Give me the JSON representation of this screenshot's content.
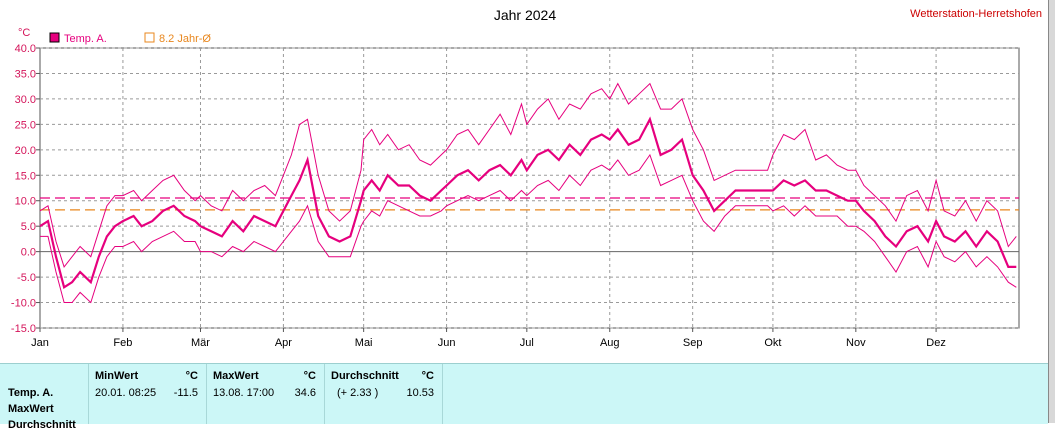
{
  "title": "Jahr 2024",
  "station": "Wetterstation-Herretshofen",
  "unit_label": "°C",
  "legend": [
    {
      "label": "Temp. A.",
      "color": "#e6007e",
      "style": "filled"
    },
    {
      "label": "8.2 Jahr-Ø",
      "color": "#e8871e",
      "style": "outline"
    }
  ],
  "chart_data": {
    "type": "line",
    "title": "Jahr 2024",
    "xlabel": "",
    "ylabel": "°C",
    "ylim": [
      -15,
      40
    ],
    "yticks": [
      "40.0",
      "35.0",
      "30.0",
      "25.0",
      "20.0",
      "15.0",
      "10.0",
      "5.0",
      "0.0",
      "-5.0",
      "-10.0",
      "-15.0"
    ],
    "x_tick_labels": [
      "Jan",
      "Feb",
      "Mär",
      "Apr",
      "Mai",
      "Jun",
      "Jul",
      "Aug",
      "Sep",
      "Okt",
      "Nov",
      "Dez"
    ],
    "x_tick_day": [
      0,
      31,
      60,
      91,
      121,
      152,
      182,
      213,
      244,
      274,
      305,
      335
    ],
    "days_in_year": 366,
    "grid": true,
    "reference_lines": [
      {
        "name": "8.2 Jahr-Ø",
        "value": 8.2,
        "color": "#e8871e"
      },
      {
        "name": "Temp. A. Durchschnitt",
        "value": 10.53,
        "color": "#e6007e"
      }
    ],
    "series": [
      {
        "name": "Temp. A.",
        "color": "#e6007e",
        "day": [
          0,
          3,
          6,
          9,
          12,
          15,
          19,
          22,
          25,
          28,
          31,
          35,
          38,
          42,
          46,
          50,
          54,
          58,
          60,
          64,
          68,
          72,
          76,
          80,
          84,
          88,
          91,
          94,
          97,
          100,
          104,
          108,
          112,
          116,
          120,
          121,
          124,
          127,
          130,
          134,
          138,
          142,
          146,
          150,
          152,
          156,
          160,
          164,
          168,
          172,
          176,
          180,
          182,
          186,
          190,
          194,
          198,
          202,
          206,
          210,
          213,
          216,
          220,
          224,
          228,
          232,
          236,
          240,
          244,
          248,
          252,
          256,
          260,
          264,
          268,
          272,
          274,
          278,
          282,
          286,
          290,
          294,
          298,
          302,
          305,
          308,
          312,
          316,
          320,
          324,
          328,
          332,
          335,
          338,
          342,
          346,
          350,
          354,
          358,
          362,
          365
        ],
        "mean": [
          5,
          6,
          -1,
          -7,
          -6,
          -4,
          -6,
          -1,
          3,
          5,
          6,
          7,
          5,
          6,
          8,
          9,
          7,
          6,
          5,
          4,
          3,
          6,
          4,
          7,
          6,
          5,
          8,
          11,
          14,
          18,
          7,
          3,
          2,
          3,
          10,
          12,
          14,
          12,
          15,
          13,
          13,
          11,
          10,
          12,
          13,
          15,
          16,
          14,
          16,
          17,
          15,
          18,
          16,
          19,
          20,
          18,
          21,
          19,
          22,
          23,
          22,
          24,
          21,
          22,
          26,
          19,
          20,
          22,
          15,
          12,
          8,
          10,
          12,
          12,
          12,
          12,
          12,
          14,
          13,
          14,
          12,
          12,
          11,
          10,
          10,
          8,
          6,
          3,
          1,
          4,
          5,
          2,
          6,
          3,
          2,
          4,
          1,
          4,
          2,
          -3,
          -3
        ],
        "max": [
          8,
          9,
          2,
          -3,
          -1,
          1,
          -1,
          4,
          9,
          11,
          11,
          12,
          10,
          12,
          14,
          15,
          12,
          10,
          11,
          9,
          8,
          12,
          10,
          12,
          13,
          11,
          15,
          19,
          25,
          26,
          15,
          8,
          6,
          8,
          16,
          22,
          24,
          21,
          23,
          20,
          21,
          18,
          17,
          19,
          20,
          23,
          24,
          21,
          24,
          27,
          23,
          29,
          25,
          28,
          30,
          26,
          29,
          28,
          31,
          32,
          30,
          33,
          29,
          31,
          33,
          28,
          28,
          30,
          24,
          20,
          14,
          15,
          16,
          16,
          16,
          16,
          19,
          23,
          22,
          24,
          18,
          19,
          17,
          16,
          16,
          13,
          11,
          9,
          6,
          11,
          12,
          8,
          14,
          8,
          7,
          10,
          6,
          10,
          8,
          1,
          3
        ],
        "min": [
          3,
          3,
          -4,
          -10,
          -10,
          -8,
          -10,
          -5,
          -1,
          1,
          1,
          2,
          0,
          2,
          3,
          4,
          2,
          2,
          0,
          0,
          -1,
          1,
          0,
          2,
          1,
          0,
          2,
          4,
          6,
          9,
          2,
          -1,
          -1,
          -1,
          5,
          6,
          8,
          7,
          10,
          9,
          8,
          7,
          7,
          8,
          9,
          10,
          11,
          10,
          11,
          12,
          10,
          12,
          11,
          13,
          14,
          12,
          15,
          13,
          16,
          17,
          16,
          18,
          15,
          16,
          19,
          13,
          14,
          15,
          10,
          6,
          4,
          7,
          9,
          9,
          9,
          9,
          8,
          9,
          7,
          9,
          7,
          7,
          7,
          5,
          5,
          4,
          2,
          -1,
          -4,
          0,
          1,
          -3,
          2,
          -1,
          -2,
          0,
          -3,
          -1,
          -3,
          -6,
          -7
        ]
      }
    ]
  },
  "stats": {
    "columns": [
      {
        "label": "MinWert",
        "unit": "°C",
        "date": "20.01.  08:25",
        "value": "-11.5"
      },
      {
        "label": "MaxWert",
        "unit": "°C",
        "date": "13.08.  17:00",
        "value": "34.6"
      },
      {
        "label": "Durchschnitt",
        "unit": "°C",
        "date": "(+ 2.33 )",
        "value": "10.53"
      }
    ],
    "rows": [
      "Temp. A.",
      "MaxWert",
      "Durchschnitt"
    ]
  }
}
